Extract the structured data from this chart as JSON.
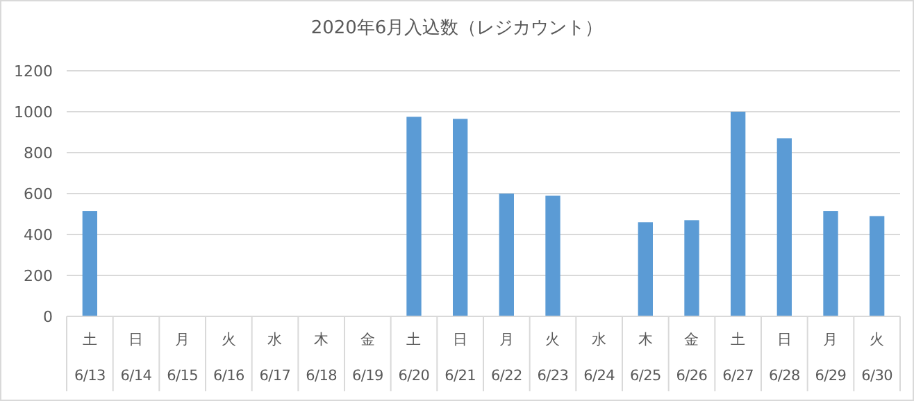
{
  "chart_data": {
    "type": "bar",
    "title": "2020年6月入込数（レジカウント）",
    "categories": [
      "土\n6/13",
      "日\n6/14",
      "月\n6/15",
      "火\n6/16",
      "水\n6/17",
      "木\n6/18",
      "金\n6/19",
      "土\n6/20",
      "日\n6/21",
      "月\n6/22",
      "火\n6/23",
      "水\n6/24",
      "木\n6/25",
      "金\n6/26",
      "土\n6/27",
      "日\n6/28",
      "月\n6/29",
      "火\n6/30"
    ],
    "values": [
      515,
      0,
      0,
      0,
      0,
      0,
      0,
      975,
      965,
      600,
      590,
      0,
      460,
      470,
      1000,
      870,
      515,
      490
    ],
    "color": "#5b9bd5",
    "ylim": [
      0,
      1200
    ],
    "yticks": [
      0,
      200,
      400,
      600,
      800,
      1000,
      1200
    ],
    "grid": "y"
  }
}
